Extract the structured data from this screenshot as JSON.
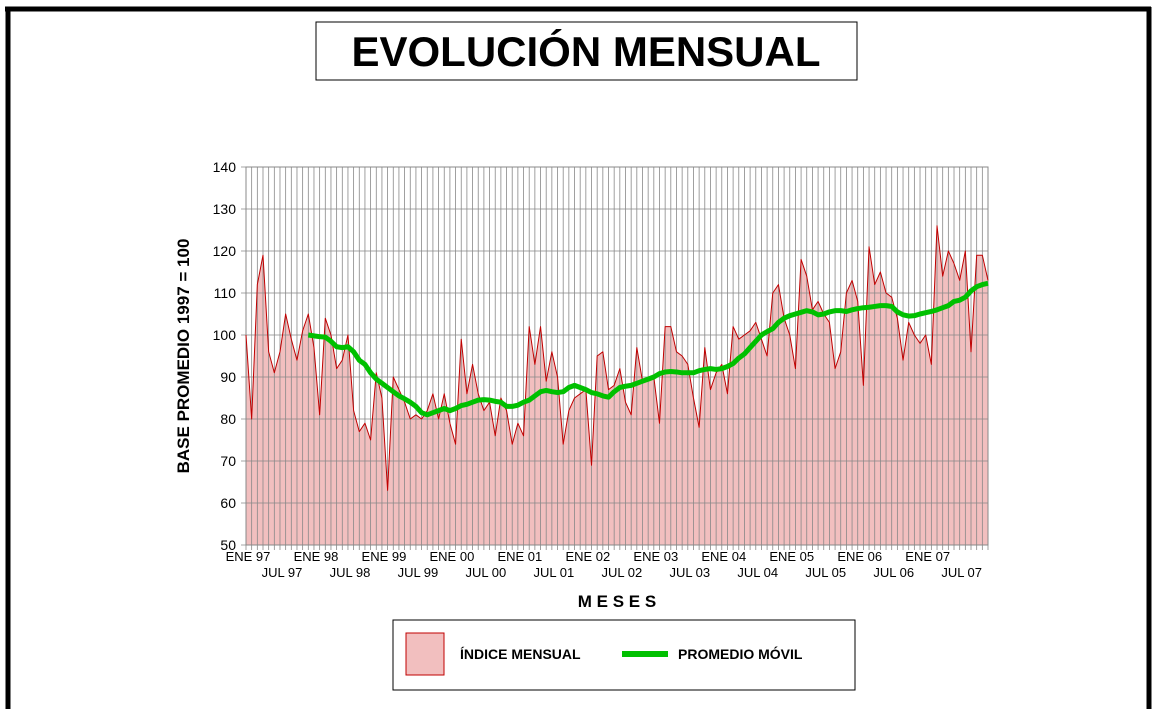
{
  "chart_data": {
    "type": "area-line",
    "title": "EVOLUCIÓN MENSUAL",
    "x_label": "M E S E S",
    "y_label": "BASE PROMEDIO 1997 = 100",
    "categories": [
      "ENE 97",
      null,
      null,
      null,
      null,
      null,
      "JUL 97",
      null,
      null,
      null,
      null,
      null,
      "ENE 98",
      null,
      null,
      null,
      null,
      null,
      "JUL 98",
      null,
      null,
      null,
      null,
      null,
      "ENE 99",
      null,
      null,
      null,
      null,
      null,
      "JUL 99",
      null,
      null,
      null,
      null,
      null,
      "ENE 00",
      null,
      null,
      null,
      null,
      null,
      "JUL 00",
      null,
      null,
      null,
      null,
      null,
      "ENE 01",
      null,
      null,
      null,
      null,
      null,
      "JUL 01",
      null,
      null,
      null,
      null,
      null,
      "ENE 02",
      null,
      null,
      null,
      null,
      null,
      "JUL 02",
      null,
      null,
      null,
      null,
      null,
      "ENE 03",
      null,
      null,
      null,
      null,
      null,
      "JUL 03",
      null,
      null,
      null,
      null,
      null,
      "ENE 04",
      null,
      null,
      null,
      null,
      null,
      "JUL 04",
      null,
      null,
      null,
      null,
      null,
      "ENE 05",
      null,
      null,
      null,
      null,
      null,
      "JUL 05",
      null,
      null,
      null,
      null,
      null,
      "ENE 06",
      null,
      null,
      null,
      null,
      null,
      "JUL 06",
      null,
      null,
      null,
      null,
      null,
      "ENE 07",
      null,
      null,
      null,
      null,
      null,
      "JUL 07",
      null,
      null,
      null,
      null,
      null
    ],
    "series": [
      {
        "name": "ÍNDICE MENSUAL",
        "color": "#c00000",
        "fill": "#f2bfbf",
        "values": [
          100,
          80,
          112,
          119,
          96,
          91,
          96,
          105,
          99,
          94,
          101,
          105,
          97,
          81,
          104,
          100,
          92,
          94,
          100,
          82,
          77,
          79,
          75,
          91,
          85,
          63,
          90,
          87,
          84,
          80,
          81,
          80,
          82,
          86,
          80,
          86,
          79,
          74,
          99,
          86,
          93,
          86,
          82,
          84,
          76,
          85,
          82,
          74,
          79,
          76,
          102,
          93,
          102,
          89,
          96,
          90,
          74,
          82,
          85,
          86,
          87,
          69,
          95,
          96,
          87,
          88,
          92,
          84,
          81,
          97,
          89,
          89,
          90,
          79,
          102,
          102,
          96,
          95,
          93,
          85,
          78,
          97,
          87,
          91,
          93,
          86,
          102,
          99,
          100,
          101,
          103,
          99,
          95,
          110,
          112,
          104,
          100,
          92,
          118,
          114,
          106,
          108,
          105,
          103,
          92,
          96,
          110,
          113,
          108,
          88,
          121,
          112,
          115,
          110,
          109,
          104,
          94,
          103,
          100,
          98,
          100,
          93,
          126,
          114,
          120,
          117,
          113,
          120,
          96,
          119,
          119,
          113
        ]
      },
      {
        "name": "PROMEDIO MÓVIL",
        "color": "#00c000",
        "values": [
          null,
          null,
          null,
          null,
          null,
          null,
          null,
          null,
          null,
          null,
          null,
          100,
          99.8,
          99.6,
          99.5,
          98.5,
          97.2,
          97,
          97.2,
          96,
          94,
          93,
          91,
          89.5,
          88.5,
          87.5,
          86.5,
          85.5,
          84.8,
          84,
          83,
          81.5,
          81,
          81.5,
          82,
          82.5,
          82,
          82.5,
          83.2,
          83.5,
          84,
          84.5,
          84.6,
          84.5,
          84.2,
          84,
          83,
          83,
          83.3,
          84,
          84.5,
          85.5,
          86.5,
          86.8,
          86.5,
          86.3,
          86.5,
          87.5,
          88,
          87.5,
          87,
          86.3,
          86,
          85.5,
          85.2,
          86.5,
          87.5,
          87.8,
          88,
          88.5,
          89,
          89.5,
          90,
          90.8,
          91.2,
          91.3,
          91.2,
          91,
          91,
          91,
          91.5,
          91.8,
          92,
          91.8,
          92,
          92.5,
          93.2,
          94.5,
          95.5,
          97,
          98.5,
          100,
          100.8,
          101.5,
          103,
          104,
          104.6,
          105,
          105.4,
          105.8,
          105.5,
          104.8,
          105,
          105.5,
          105.8,
          105.8,
          105.6,
          106,
          106.3,
          106.5,
          106.6,
          106.8,
          107,
          107,
          106.8,
          105.5,
          104.8,
          104.5,
          104.6,
          105,
          105.3,
          105.6,
          106,
          106.5,
          107,
          108,
          108.3,
          109,
          110.5,
          111.5,
          112,
          112.3
        ]
      }
    ],
    "ylim": [
      50,
      140
    ],
    "yticks": [
      50,
      60,
      70,
      80,
      90,
      100,
      110,
      120,
      130,
      140
    ],
    "grid": true
  }
}
